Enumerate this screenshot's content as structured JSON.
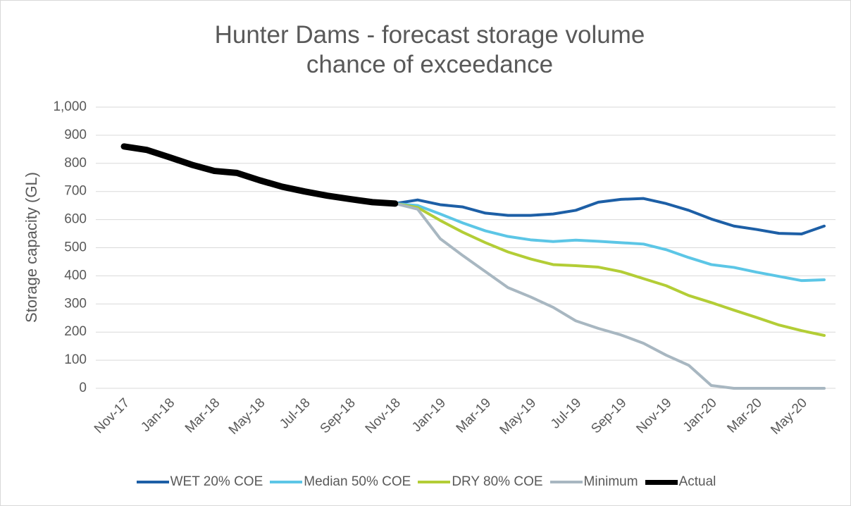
{
  "chart_data": {
    "type": "line",
    "title": "Hunter Dams - forecast storage volume chance of exceedance",
    "y_label": "Storage capacity (GL)",
    "categories": [
      "Nov-17",
      null,
      "Jan-18",
      null,
      "Mar-18",
      null,
      "May-18",
      null,
      "Jul-18",
      null,
      "Sep-18",
      null,
      "Nov-18",
      null,
      "Jan-19",
      null,
      "Mar-19",
      null,
      "May-19",
      null,
      "Jul-19",
      null,
      "Sep-19",
      null,
      "Nov-19",
      null,
      "Jan-20",
      null,
      "Mar-20",
      null,
      "May-20",
      null
    ],
    "ylim": [
      0,
      1000
    ],
    "yticks": [
      0,
      100,
      200,
      300,
      400,
      500,
      600,
      700,
      800,
      900,
      {
        "value": 1000,
        "label": "1,000"
      }
    ],
    "grid": true,
    "legend": "bottom",
    "series": [
      {
        "name": "WET 20% COE",
        "color": "#1d5fa6",
        "width": 4,
        "values": [
          null,
          null,
          null,
          null,
          null,
          null,
          null,
          null,
          null,
          null,
          null,
          null,
          657,
          670,
          653,
          645,
          623,
          615,
          615,
          620,
          633,
          662,
          672,
          675,
          657,
          633,
          602,
          577,
          565,
          551,
          549,
          577
        ]
      },
      {
        "name": "Median 50% COE",
        "color": "#5cc6e6",
        "width": 4,
        "values": [
          null,
          null,
          null,
          null,
          null,
          null,
          null,
          null,
          null,
          null,
          null,
          null,
          657,
          650,
          620,
          588,
          560,
          540,
          528,
          522,
          527,
          523,
          518,
          513,
          493,
          465,
          440,
          430,
          413,
          398,
          383,
          386
        ]
      },
      {
        "name": "DRY 80% COE",
        "color": "#b3cd36",
        "width": 4,
        "values": [
          null,
          null,
          null,
          null,
          null,
          null,
          null,
          null,
          null,
          null,
          null,
          null,
          657,
          643,
          597,
          555,
          518,
          485,
          460,
          440,
          436,
          431,
          415,
          390,
          365,
          330,
          305,
          278,
          252,
          225,
          205,
          188
        ]
      },
      {
        "name": "Minimum",
        "color": "#a8b7c1",
        "width": 4,
        "values": [
          null,
          null,
          null,
          null,
          null,
          null,
          null,
          null,
          null,
          null,
          null,
          null,
          657,
          637,
          532,
          472,
          415,
          358,
          325,
          288,
          240,
          213,
          190,
          160,
          118,
          82,
          10,
          0,
          0,
          0,
          0,
          0
        ]
      },
      {
        "name": "Actual",
        "color": "#000000",
        "width": 9,
        "values": [
          860,
          848,
          822,
          795,
          773,
          766,
          740,
          717,
          700,
          685,
          673,
          662,
          657,
          null,
          null,
          null,
          null,
          null,
          null,
          null,
          null,
          null,
          null,
          null,
          null,
          null,
          null,
          null,
          null,
          null,
          null,
          null
        ]
      }
    ]
  }
}
